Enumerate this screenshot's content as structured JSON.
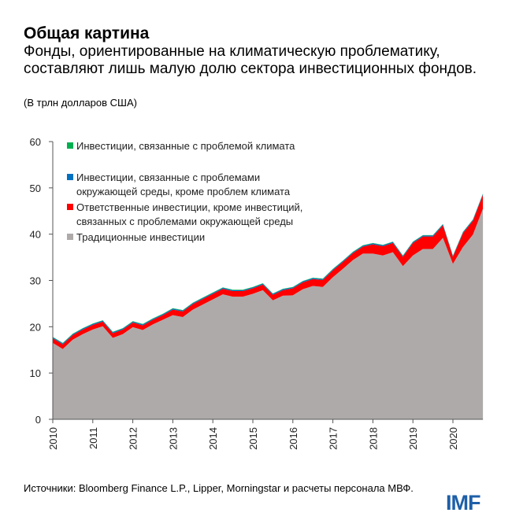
{
  "header": {
    "title": "Общая картина",
    "subtitle": "Фонды, ориентированные на климатическую проблематику, составляют лишь малую долю сектора инвестиционных фондов.",
    "units": "(В трлн долларов США)"
  },
  "footer": {
    "source": "Источники: Bloomberg Finance L.P., Lipper, Morningstar и расчеты персонала МВФ.",
    "logo": "IMF"
  },
  "chart_data": {
    "type": "area",
    "stacked": true,
    "frequency": "quarterly",
    "x_start": "2010Q1",
    "x_end": "2020Q4",
    "xticks": [
      "2010",
      "2011",
      "2012",
      "2013",
      "2014",
      "2015",
      "2016",
      "2017",
      "2018",
      "2019",
      "2020"
    ],
    "ylim": [
      0,
      60
    ],
    "yticks": [
      0,
      10,
      20,
      30,
      40,
      50,
      60
    ],
    "grid": false,
    "legend_position": "top-left",
    "series": [
      {
        "name": "Традиционные инвестиции",
        "color": "#aeaaaa",
        "values": [
          16.5,
          15.2,
          17.2,
          18.4,
          19.4,
          20.1,
          17.6,
          18.4,
          19.9,
          19.3,
          20.5,
          21.5,
          22.5,
          22.1,
          23.7,
          24.8,
          25.9,
          27.0,
          26.5,
          26.5,
          27.1,
          27.9,
          25.7,
          26.7,
          26.8,
          28.1,
          28.8,
          28.6,
          30.7,
          32.5,
          34.4,
          35.8,
          35.8,
          35.4,
          36.1,
          33.1,
          35.4,
          36.8,
          36.8,
          39.2,
          33.6,
          37.2,
          39.9,
          45.5
        ]
      },
      {
        "name": "Ответственные инвестиции, кроме инвестиций, связанных с проблемами окружающей среды",
        "color": "#ff0000",
        "values": [
          1.0,
          1.0,
          1.0,
          1.0,
          1.0,
          1.0,
          1.0,
          1.0,
          1.0,
          1.0,
          1.0,
          1.0,
          1.2,
          1.2,
          1.2,
          1.2,
          1.2,
          1.2,
          1.2,
          1.2,
          1.2,
          1.2,
          1.2,
          1.2,
          1.5,
          1.5,
          1.5,
          1.5,
          1.5,
          1.5,
          1.5,
          1.5,
          2.0,
          2.0,
          2.0,
          2.0,
          2.7,
          2.7,
          2.7,
          2.7,
          1.5,
          3.0,
          3.0,
          3.0
        ]
      },
      {
        "name": "Инвестиции, связанные с проблемами окружающей среды, кроме проблем климата",
        "color": "#0070c0",
        "values": [
          0.2,
          0.2,
          0.2,
          0.2,
          0.2,
          0.2,
          0.2,
          0.2,
          0.2,
          0.2,
          0.2,
          0.2,
          0.2,
          0.2,
          0.2,
          0.2,
          0.2,
          0.2,
          0.2,
          0.2,
          0.2,
          0.2,
          0.2,
          0.2,
          0.2,
          0.2,
          0.2,
          0.2,
          0.2,
          0.2,
          0.2,
          0.2,
          0.2,
          0.2,
          0.2,
          0.2,
          0.2,
          0.2,
          0.2,
          0.2,
          0.2,
          0.2,
          0.2,
          0.2
        ]
      },
      {
        "name": "Инвестиции, связанные с проблемой климата",
        "color": "#00b050",
        "values": [
          0.1,
          0.1,
          0.1,
          0.1,
          0.1,
          0.1,
          0.1,
          0.1,
          0.1,
          0.1,
          0.1,
          0.1,
          0.1,
          0.1,
          0.1,
          0.1,
          0.1,
          0.1,
          0.1,
          0.1,
          0.1,
          0.1,
          0.1,
          0.1,
          0.1,
          0.1,
          0.1,
          0.1,
          0.1,
          0.1,
          0.1,
          0.1,
          0.1,
          0.1,
          0.1,
          0.1,
          0.1,
          0.1,
          0.1,
          0.1,
          0.1,
          0.1,
          0.1,
          0.1
        ]
      }
    ],
    "legend": [
      {
        "lines": [
          "Инвестиции, связанные с проблемой климата"
        ],
        "color": "#00b050"
      },
      {
        "lines": [
          "Инвестиции, связанные с проблемами",
          "окружающей среды, кроме проблем климата"
        ],
        "color": "#0070c0"
      },
      {
        "lines": [
          "Ответственные инвестиции, кроме инвестиций,",
          "связанных с проблемами окружающей среды"
        ],
        "color": "#ff0000"
      },
      {
        "lines": [
          "Традиционные инвестиции"
        ],
        "color": "#aeaaaa"
      }
    ]
  }
}
